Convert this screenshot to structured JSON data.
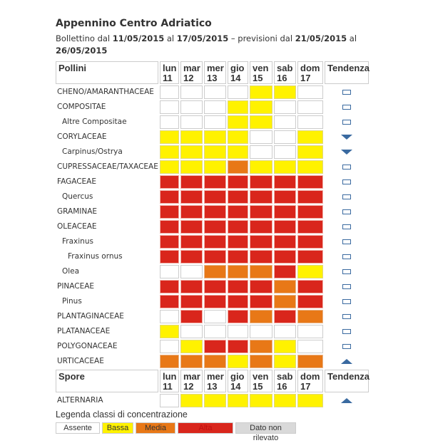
{
  "title": "Appennino Centro Adriatico",
  "bulletin": {
    "prefix": "Bollettino dal",
    "from": "11/05/2015",
    "al1": "al",
    "to": "17/05/2015",
    "mid": "– previsioni dal",
    "fc_from": "21/05/2015",
    "al2": "al",
    "fc_to": "26/05/2015"
  },
  "days": [
    {
      "d": "lun",
      "n": "11"
    },
    {
      "d": "mar",
      "n": "12"
    },
    {
      "d": "mer",
      "n": "13"
    },
    {
      "d": "gio",
      "n": "14"
    },
    {
      "d": "ven",
      "n": "15"
    },
    {
      "d": "sab",
      "n": "16"
    },
    {
      "d": "dom",
      "n": "17"
    }
  ],
  "pollen_header": "Pollini",
  "spore_header": "Spore",
  "trend_header": "Tendenza",
  "colors": {
    "assente": "#ffffff",
    "bassa": "#fff200",
    "media": "#e87817",
    "alta": "#d9261c",
    "non_rilevato": "#d9d9d9",
    "trend": "#3a6aa0"
  },
  "pollen": [
    {
      "name": "CHENO/AMARANTHACEAE",
      "level": 0,
      "values": [
        "A",
        "A",
        "A",
        "A",
        "B",
        "B",
        "A"
      ],
      "trend": "stable"
    },
    {
      "name": "COMPOSITAE",
      "level": 0,
      "values": [
        "A",
        "A",
        "A",
        "B",
        "B",
        "A",
        "A"
      ],
      "trend": "stable"
    },
    {
      "name": "Altre Compositae",
      "level": 1,
      "values": [
        "A",
        "A",
        "A",
        "B",
        "B",
        "A",
        "A"
      ],
      "trend": "stable"
    },
    {
      "name": "CORYLACEAE",
      "level": 0,
      "values": [
        "B",
        "B",
        "B",
        "B",
        "A",
        "A",
        "B"
      ],
      "trend": "down"
    },
    {
      "name": "Carpinus/Ostrya",
      "level": 1,
      "values": [
        "B",
        "B",
        "B",
        "B",
        "A",
        "A",
        "B"
      ],
      "trend": "down"
    },
    {
      "name": "CUPRESSACEAE/TAXACEAE",
      "level": 0,
      "values": [
        "B",
        "B",
        "B",
        "M",
        "B",
        "B",
        "B"
      ],
      "trend": "stable"
    },
    {
      "name": "FAGACEAE",
      "level": 0,
      "values": [
        "H",
        "H",
        "H",
        "H",
        "H",
        "H",
        "H"
      ],
      "trend": "stable"
    },
    {
      "name": "Quercus",
      "level": 1,
      "values": [
        "H",
        "H",
        "H",
        "H",
        "H",
        "H",
        "H"
      ],
      "trend": "stable"
    },
    {
      "name": "GRAMINAE",
      "level": 0,
      "values": [
        "H",
        "H",
        "H",
        "H",
        "H",
        "H",
        "H"
      ],
      "trend": "stable"
    },
    {
      "name": "OLEACEAE",
      "level": 0,
      "values": [
        "H",
        "H",
        "H",
        "H",
        "H",
        "H",
        "H"
      ],
      "trend": "stable"
    },
    {
      "name": "Fraxinus",
      "level": 1,
      "values": [
        "H",
        "H",
        "H",
        "H",
        "H",
        "H",
        "H"
      ],
      "trend": "stable"
    },
    {
      "name": "Fraxinus ornus",
      "level": 2,
      "values": [
        "H",
        "H",
        "H",
        "H",
        "H",
        "H",
        "H"
      ],
      "trend": "stable"
    },
    {
      "name": "Olea",
      "level": 1,
      "values": [
        "A",
        "A",
        "M",
        "M",
        "M",
        "H",
        "B"
      ],
      "trend": "stable"
    },
    {
      "name": "PINACEAE",
      "level": 0,
      "values": [
        "H",
        "H",
        "H",
        "H",
        "H",
        "M",
        "H"
      ],
      "trend": "stable"
    },
    {
      "name": "Pinus",
      "level": 1,
      "values": [
        "H",
        "H",
        "H",
        "H",
        "H",
        "M",
        "H"
      ],
      "trend": "stable"
    },
    {
      "name": "PLANTAGINACEAE",
      "level": 0,
      "values": [
        "A",
        "H",
        "A",
        "H",
        "M",
        "H",
        "M"
      ],
      "trend": "stable"
    },
    {
      "name": "PLATANACEAE",
      "level": 0,
      "values": [
        "B",
        "A",
        "A",
        "A",
        "A",
        "A",
        "A"
      ],
      "trend": "stable"
    },
    {
      "name": "POLYGONACEAE",
      "level": 0,
      "values": [
        "A",
        "B",
        "H",
        "H",
        "M",
        "B",
        "A"
      ],
      "trend": "stable"
    },
    {
      "name": "URTICACEAE",
      "level": 0,
      "values": [
        "M",
        "M",
        "M",
        "B",
        "M",
        "B",
        "M"
      ],
      "trend": "up"
    }
  ],
  "spores": [
    {
      "name": "ALTERNARIA",
      "level": 0,
      "values": [
        "A",
        "B",
        "B",
        "B",
        "B",
        "B",
        "B"
      ],
      "trend": "up"
    }
  ],
  "legend": {
    "title": "Legenda classi di concentrazione",
    "items": [
      {
        "label": "Assente",
        "cls": "A"
      },
      {
        "label": "Bassa",
        "cls": "B"
      },
      {
        "label": "Media",
        "cls": "M"
      },
      {
        "label": "Alta",
        "cls": "H"
      },
      {
        "label": "Dato non rilevato",
        "cls": "N"
      }
    ]
  }
}
